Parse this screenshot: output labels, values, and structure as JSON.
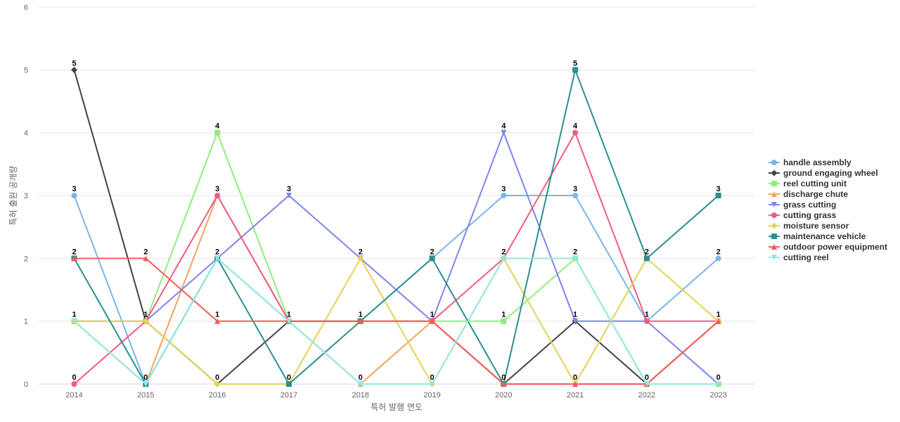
{
  "chart_data": {
    "type": "line",
    "title": "",
    "xlabel": "특허 발행 연도",
    "ylabel": "특허 출원 공개량",
    "categories": [
      "2014",
      "2015",
      "2016",
      "2017",
      "2018",
      "2019",
      "2020",
      "2021",
      "2022",
      "2023"
    ],
    "ylim": [
      0,
      6
    ],
    "yticks": [
      0,
      1,
      2,
      3,
      4,
      5,
      6
    ],
    "grid": true,
    "legend_position": "right",
    "data_labels": true,
    "series": [
      {
        "name": "handle assembly",
        "color": "#7cb5ec",
        "marker": "circle",
        "values": [
          3,
          0,
          2,
          1,
          1,
          2,
          3,
          3,
          1,
          2
        ]
      },
      {
        "name": "ground engaging wheel",
        "color": "#434348",
        "marker": "diamond",
        "values": [
          5,
          1,
          0,
          1,
          1,
          1,
          0,
          1,
          0,
          1
        ]
      },
      {
        "name": "reel cutting unit",
        "color": "#90ed7d",
        "marker": "square",
        "values": [
          1,
          1,
          4,
          1,
          1,
          1,
          1,
          2,
          0,
          0
        ]
      },
      {
        "name": "discharge chute",
        "color": "#f7a35c",
        "marker": "triangle",
        "values": [
          1,
          0,
          3,
          1,
          0,
          1,
          0,
          0,
          0,
          1
        ]
      },
      {
        "name": "grass cutting",
        "color": "#8085e9",
        "marker": "triangle-down",
        "values": [
          1,
          1,
          2,
          3,
          2,
          1,
          4,
          1,
          1,
          0
        ]
      },
      {
        "name": "cutting grass",
        "color": "#f15c80",
        "marker": "circle",
        "values": [
          0,
          1,
          3,
          1,
          1,
          1,
          2,
          4,
          1,
          1
        ]
      },
      {
        "name": "moisture sensor",
        "color": "#e4d354",
        "marker": "diamond",
        "values": [
          1,
          1,
          0,
          0,
          2,
          0,
          2,
          0,
          2,
          1
        ]
      },
      {
        "name": "maintenance vehicle",
        "color": "#2b908f",
        "marker": "square",
        "values": [
          2,
          0,
          2,
          0,
          1,
          2,
          0,
          5,
          2,
          3
        ]
      },
      {
        "name": "outdoor power equipment",
        "color": "#f45b5b",
        "marker": "triangle",
        "values": [
          2,
          2,
          1,
          1,
          1,
          1,
          0,
          0,
          0,
          1
        ]
      },
      {
        "name": "cutting reel",
        "color": "#91e8e1",
        "marker": "triangle-down",
        "values": [
          1,
          0,
          2,
          1,
          0,
          0,
          2,
          2,
          0,
          0
        ]
      }
    ],
    "point_labels": [
      {
        "x": "2014",
        "y": 5,
        "text": "5"
      },
      {
        "x": "2014",
        "y": 3,
        "text": "3"
      },
      {
        "x": "2014",
        "y": 2,
        "text": "2"
      },
      {
        "x": "2014",
        "y": 1,
        "text": "1"
      },
      {
        "x": "2014",
        "y": 0,
        "text": "0"
      },
      {
        "x": "2015",
        "y": 2,
        "text": "2"
      },
      {
        "x": "2015",
        "y": 1,
        "text": "1"
      },
      {
        "x": "2015",
        "y": 0,
        "text": "0"
      },
      {
        "x": "2016",
        "y": 4,
        "text": "4"
      },
      {
        "x": "2016",
        "y": 3,
        "text": "3"
      },
      {
        "x": "2016",
        "y": 2,
        "text": "2"
      },
      {
        "x": "2016",
        "y": 1,
        "text": "1"
      },
      {
        "x": "2016",
        "y": 0,
        "text": "0"
      },
      {
        "x": "2017",
        "y": 3,
        "text": "3"
      },
      {
        "x": "2017",
        "y": 1,
        "text": "1"
      },
      {
        "x": "2017",
        "y": 0,
        "text": "0"
      },
      {
        "x": "2018",
        "y": 2,
        "text": "2"
      },
      {
        "x": "2018",
        "y": 1,
        "text": "1"
      },
      {
        "x": "2018",
        "y": 0,
        "text": "0"
      },
      {
        "x": "2019",
        "y": 2,
        "text": "2"
      },
      {
        "x": "2019",
        "y": 1,
        "text": "1"
      },
      {
        "x": "2019",
        "y": 0,
        "text": "0"
      },
      {
        "x": "2020",
        "y": 4,
        "text": "4"
      },
      {
        "x": "2020",
        "y": 3,
        "text": "3"
      },
      {
        "x": "2020",
        "y": 2,
        "text": "2"
      },
      {
        "x": "2020",
        "y": 1,
        "text": "1"
      },
      {
        "x": "2020",
        "y": 0,
        "text": "0"
      },
      {
        "x": "2021",
        "y": 5,
        "text": "5"
      },
      {
        "x": "2021",
        "y": 4,
        "text": "4"
      },
      {
        "x": "2021",
        "y": 3,
        "text": "3"
      },
      {
        "x": "2021",
        "y": 2,
        "text": "2"
      },
      {
        "x": "2021",
        "y": 1,
        "text": "1"
      },
      {
        "x": "2021",
        "y": 0,
        "text": "0"
      },
      {
        "x": "2022",
        "y": 2,
        "text": "2"
      },
      {
        "x": "2022",
        "y": 1,
        "text": "1"
      },
      {
        "x": "2022",
        "y": 0,
        "text": "0"
      },
      {
        "x": "2023",
        "y": 3,
        "text": "3"
      },
      {
        "x": "2023",
        "y": 2,
        "text": "2"
      },
      {
        "x": "2023",
        "y": 1,
        "text": "1"
      },
      {
        "x": "2023",
        "y": 0,
        "text": "0"
      }
    ]
  }
}
